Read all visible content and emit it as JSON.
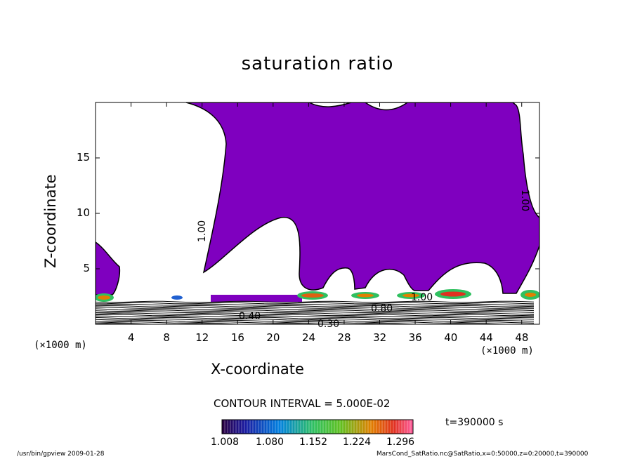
{
  "chart_data": {
    "type": "heatmap",
    "title": "saturation ratio",
    "xlabel": "X-coordinate",
    "ylabel": "Z-coordinate",
    "x_unit": "(×1000 m)",
    "z_unit": "(×1000 m)",
    "xlim": [
      0,
      50
    ],
    "ylim": [
      0,
      20
    ],
    "x_ticks": [
      4,
      8,
      12,
      16,
      20,
      24,
      28,
      32,
      36,
      40,
      44,
      48
    ],
    "y_ticks": [
      5,
      10,
      15
    ],
    "contour_interval_text": "CONTOUR INTERVAL = 5.000E-02",
    "time_text": "t=390000 s",
    "colorbar_labels": [
      "1.008",
      "1.080",
      "1.152",
      "1.224",
      "1.296"
    ],
    "contour_labels": [
      "1.00",
      "1.00",
      "0.40",
      "0.30",
      "0.80",
      "1.00"
    ],
    "colors": {
      "saturated_fill": "#7f00bf",
      "line": "#000000"
    }
  },
  "footer": {
    "left": "/usr/bin/gpview   2009-01-28",
    "right": "MarsCond_SatRatio.nc@SatRatio,x=0:50000,z=0:20000,t=390000"
  }
}
